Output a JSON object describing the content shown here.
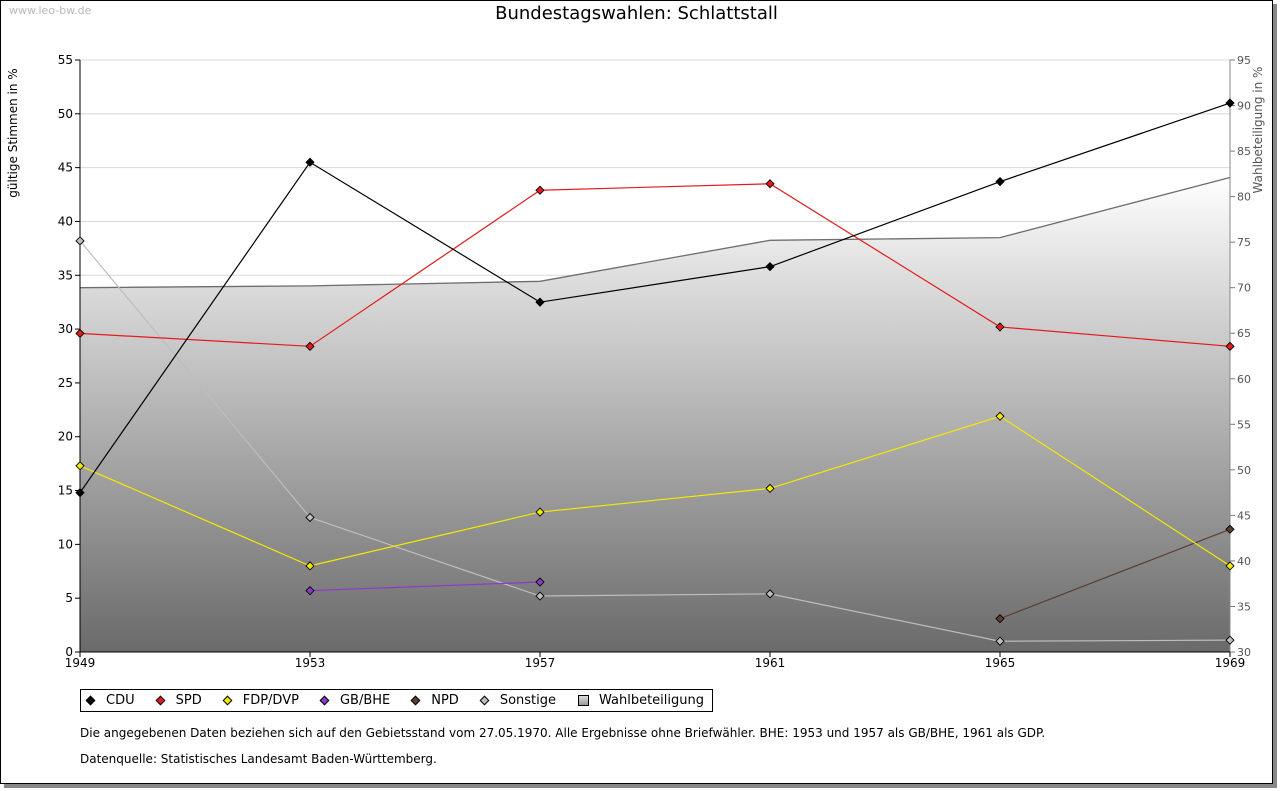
{
  "watermark": "www.leo-bw.de",
  "chart_data": {
    "type": "line",
    "title": "Bundestagswahlen: Schlattstall",
    "ylabel": "gültige Stimmen in %",
    "ylabel_right": "Wahlbeteiligung in %",
    "ylim": [
      0,
      55
    ],
    "ylim_right": [
      30,
      95
    ],
    "yticks": [
      0,
      5,
      10,
      15,
      20,
      25,
      30,
      35,
      40,
      45,
      50,
      55
    ],
    "yticks_right": [
      30,
      35,
      40,
      45,
      50,
      55,
      60,
      65,
      70,
      75,
      80,
      85,
      90,
      95
    ],
    "categories": [
      "1949",
      "1953",
      "1957",
      "1961",
      "1965",
      "1969"
    ],
    "series": [
      {
        "name": "CDU",
        "color": "#000000",
        "values": [
          14.8,
          45.5,
          32.5,
          35.8,
          43.7,
          51.0
        ]
      },
      {
        "name": "SPD",
        "color": "#e31b1b",
        "values": [
          29.6,
          28.4,
          42.9,
          43.5,
          30.2,
          28.4
        ]
      },
      {
        "name": "FDP/DVP",
        "color": "#f2ea00",
        "values": [
          17.3,
          8.0,
          13.0,
          15.2,
          21.9,
          8.0
        ]
      },
      {
        "name": "GB/BHE",
        "color": "#8e3ac8",
        "values": [
          null,
          5.7,
          6.5,
          null,
          null,
          null
        ]
      },
      {
        "name": "NPD",
        "color": "#5a3f32",
        "values": [
          null,
          null,
          null,
          null,
          3.1,
          11.4
        ]
      },
      {
        "name": "Sonstige",
        "color": "#bdbdbd",
        "values": [
          38.2,
          12.5,
          5.2,
          5.4,
          1.0,
          1.1
        ]
      }
    ],
    "turnout": {
      "name": "Wahlbeteiligung",
      "values": [
        70.0,
        70.2,
        70.7,
        75.2,
        75.5,
        82.1
      ]
    }
  },
  "notes": {
    "line1": "Die angegebenen Daten beziehen sich auf den Gebietsstand vom 27.05.1970. Alle Ergebnisse ohne Briefwähler. BHE: 1953 und 1957 als GB/BHE, 1961 als GDP.",
    "line2": "Datenquelle: Statistisches Landesamt Baden-Württemberg."
  }
}
